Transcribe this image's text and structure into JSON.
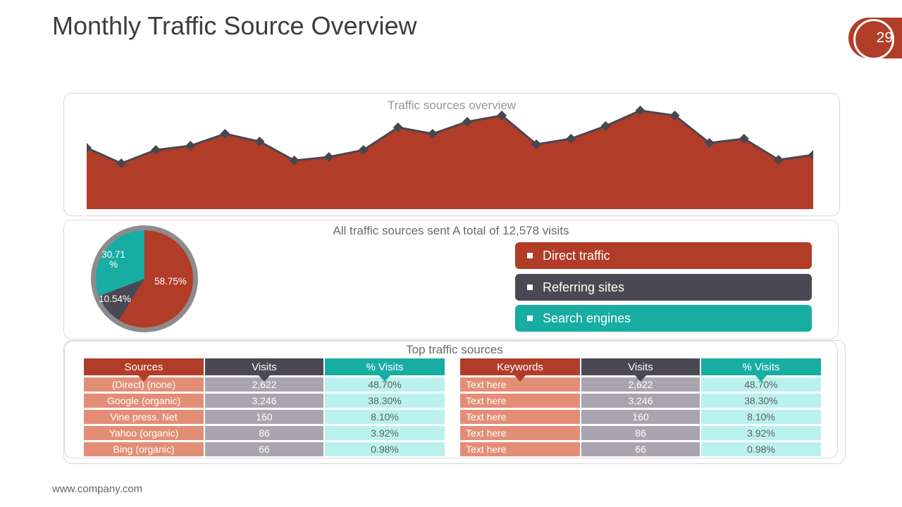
{
  "slide": {
    "title": "Monthly Traffic Source Overview",
    "page_number": "29",
    "footer": "www.company.com"
  },
  "colors": {
    "brick": "#b13c28",
    "dark": "#4a4953",
    "teal": "#17ada3",
    "line": "#474750",
    "ring_gray": "#8c8c8c",
    "salmon": "#e28e76",
    "cell_gray": "#a9a4b0",
    "cell_cyan": "#baf1ed",
    "cell_text_dark": "#5f5f5f",
    "panel_border": "#d9d9d9"
  },
  "chart_data": [
    {
      "type": "area",
      "title": "Traffic sources overview",
      "marker": "diamond",
      "grid": false,
      "ylim": [
        0,
        156
      ],
      "values": [
        87,
        65,
        84,
        90,
        107,
        96,
        69,
        74,
        84,
        116,
        107,
        124,
        133,
        92,
        100,
        118,
        140,
        133,
        94,
        100,
        70,
        77
      ]
    },
    {
      "type": "pie",
      "title": "All traffic sources sent A total of 12,578 visits",
      "legend_position": "right",
      "slices": [
        {
          "label": "Direct traffic",
          "value": 58.75,
          "display": "58.75%",
          "color": "#b13c28"
        },
        {
          "label": "Referring sites",
          "value": 10.54,
          "display": "10.54%",
          "color": "#4a4953"
        },
        {
          "label": "Search engines",
          "value": 30.71,
          "display": "30.71 %",
          "color": "#17ada3"
        }
      ]
    }
  ],
  "pie_panel": {
    "title": "All traffic sources sent A total of 12,578 visits",
    "legend": [
      {
        "label": "Direct traffic",
        "color": "#b13c28"
      },
      {
        "label": "Referring sites",
        "color": "#4a4953"
      },
      {
        "label": "Search engines",
        "color": "#17ada3"
      }
    ]
  },
  "tables_section": {
    "title": "Top traffic sources",
    "header_colors": [
      "#b13c28",
      "#4a4953",
      "#17ada3"
    ],
    "cell_colors": [
      "#e28e76",
      "#a9a4b0",
      "#baf1ed"
    ],
    "cell_text_colors": [
      "#ffffff",
      "#ffffff",
      "#5f5f5f"
    ],
    "tables": [
      {
        "name": "sources-table",
        "first_col_align": "center",
        "headers": [
          "Sources",
          "Visits",
          "% Visits"
        ],
        "rows": [
          [
            "(Direct) (none)",
            "2,622",
            "48.70%"
          ],
          [
            "Google (organic)",
            "3,246",
            "38.30%"
          ],
          [
            "Vine press. Net",
            "160",
            "8.10%"
          ],
          [
            "Yahoo (organic)",
            "86",
            "3.92%"
          ],
          [
            "Bing (organic)",
            "66",
            "0.98%"
          ]
        ]
      },
      {
        "name": "keywords-table",
        "first_col_align": "left",
        "headers": [
          "Keywords",
          "Visits",
          "% Visits"
        ],
        "rows": [
          [
            "Text here",
            "2,622",
            "48.70%"
          ],
          [
            "Text here",
            "3,246",
            "38.30%"
          ],
          [
            "Text here",
            "160",
            "8.10%"
          ],
          [
            "Text here",
            "86",
            "3.92%"
          ],
          [
            "Text here",
            "66",
            "0.98%"
          ]
        ]
      }
    ]
  }
}
